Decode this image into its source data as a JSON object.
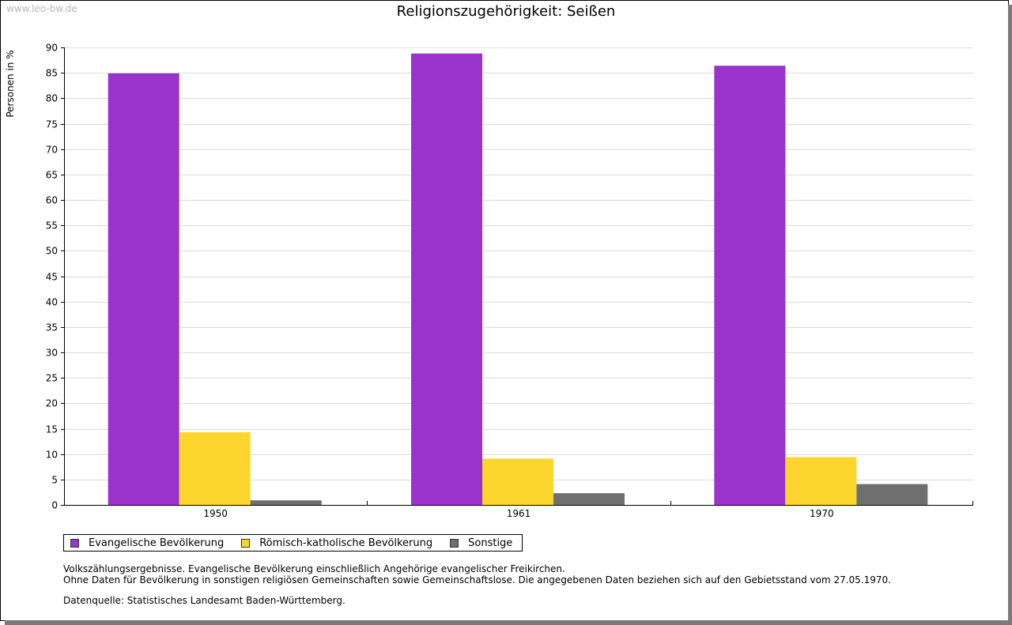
{
  "watermark": "www.leo-bw.de",
  "chart_data": {
    "type": "bar",
    "title": "Religionszugehörigkeit: Seißen",
    "ylabel": "Personen in %",
    "xlabel": "",
    "ylim": [
      0,
      90
    ],
    "yticks": [
      0,
      5,
      10,
      15,
      20,
      25,
      30,
      35,
      40,
      45,
      50,
      55,
      60,
      65,
      70,
      75,
      80,
      85,
      90
    ],
    "categories": [
      "1950",
      "1961",
      "1970"
    ],
    "grid": true,
    "legend_position": "bottom",
    "series": [
      {
        "name": "Evangelische Bevölkerung",
        "color": "#9933CC",
        "values": [
          84.9,
          88.8,
          86.4
        ]
      },
      {
        "name": "Römisch-katholische Bevölkerung",
        "color": "#FCD62C",
        "values": [
          14.3,
          9.1,
          9.4
        ]
      },
      {
        "name": "Sonstige",
        "color": "#6F6F6F",
        "values": [
          0.9,
          2.3,
          4.1
        ]
      }
    ]
  },
  "notes": [
    "Volkszählungsergebnisse. Evangelische Bevölkerung einschließlich Angehörige evangelischer Freikirchen.",
    "Ohne Daten für Bevölkerung in sonstigen religiösen Gemeinschaften sowie Gemeinschaftslose. Die angegebenen Daten beziehen sich auf den Gebietsstand vom 27.05.1970."
  ],
  "source": "Datenquelle: Statistisches Landesamt Baden-Württemberg."
}
